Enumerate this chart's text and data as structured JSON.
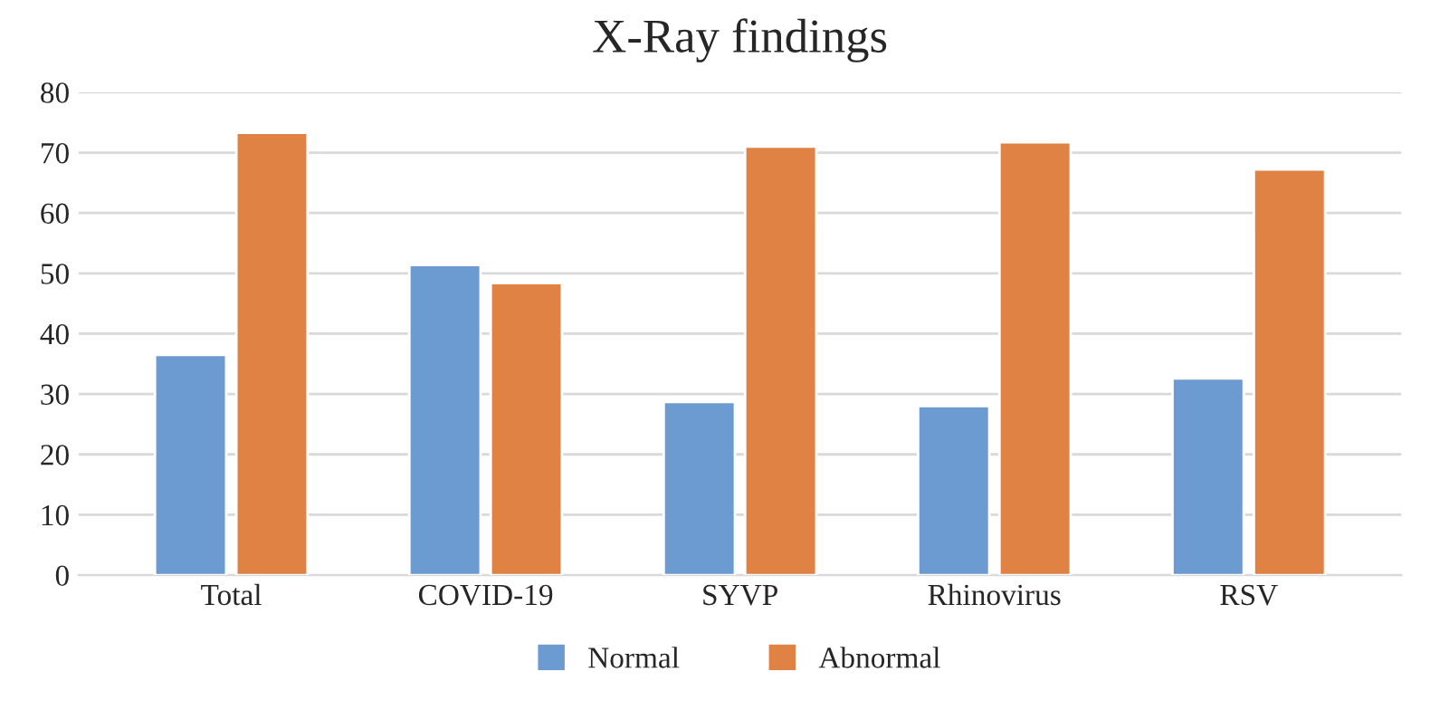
{
  "chart_data": {
    "type": "bar",
    "title": "X-Ray findings",
    "categories": [
      "Total",
      "COVID-19",
      "SYVP",
      "Rhinovirus",
      "RSV"
    ],
    "series": [
      {
        "name": "Normal",
        "color": "#6b9bd1",
        "values": [
          36.5,
          51.4,
          28.7,
          28.0,
          32.6
        ]
      },
      {
        "name": "Abnormal",
        "color": "#df8243",
        "values": [
          73.3,
          48.4,
          71.0,
          71.7,
          67.2
        ]
      }
    ],
    "ylim": [
      0,
      80
    ],
    "yticks": [
      0,
      10,
      20,
      30,
      40,
      50,
      60,
      70,
      80
    ],
    "grid": "y",
    "legend": "bottom"
  }
}
